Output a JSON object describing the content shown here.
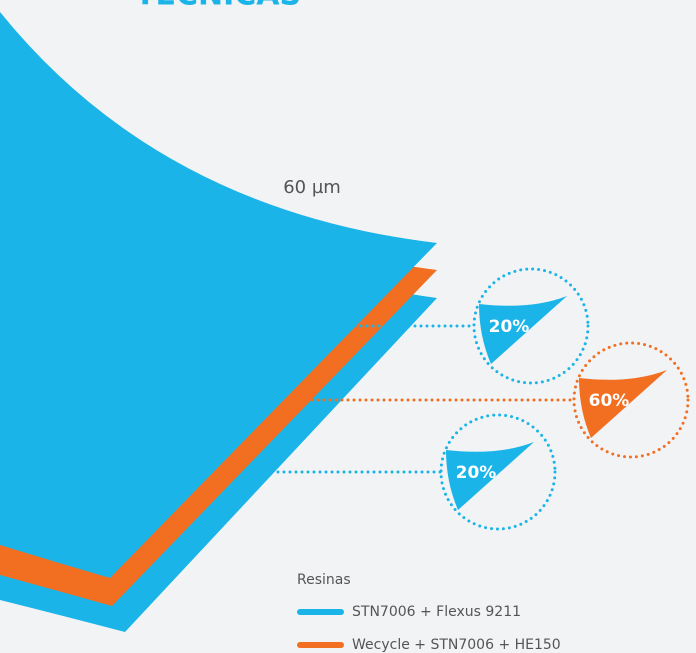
{
  "header": {
    "title": "TECNICAS"
  },
  "thickness": "60 µm",
  "layers": [
    {
      "label": "20%",
      "color": "#1ab4e8"
    },
    {
      "label": "60%",
      "color": "#f26f21"
    },
    {
      "label": "20%",
      "color": "#1ab4e8"
    }
  ],
  "legend": {
    "title": "Resinas",
    "items": [
      {
        "label": "STN7006 + Flexus 9211",
        "color": "#1ab4e8"
      },
      {
        "label": "Wecycle + STN7006 + HE150",
        "color": "#f26f21"
      }
    ]
  }
}
